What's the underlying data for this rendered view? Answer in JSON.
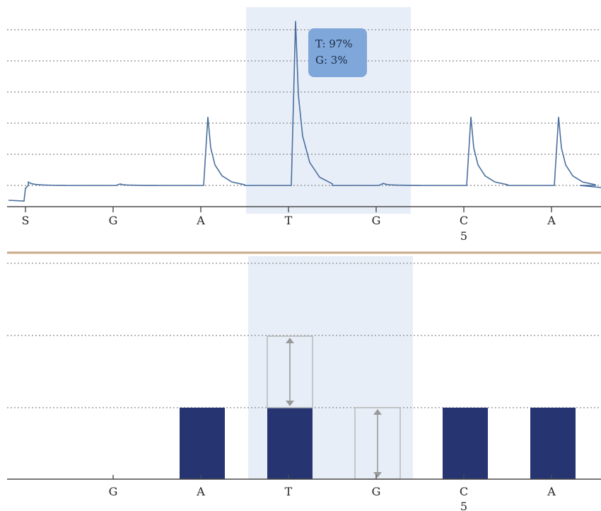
{
  "chart_data": [
    {
      "type": "line",
      "title": "",
      "description_type": "pyrogram",
      "x_categories": [
        "S",
        "G",
        "A",
        "T",
        "G",
        "C",
        "A"
      ],
      "position_labels": [
        {
          "category_index": 5,
          "label": "5"
        }
      ],
      "highlighted_category_index": 3,
      "peaks": [
        {
          "dispensation": "S",
          "height": 0.05
        },
        {
          "dispensation": "G",
          "height": 0.02
        },
        {
          "dispensation": "A",
          "height": 1.0
        },
        {
          "dispensation": "T",
          "height": 2.0
        },
        {
          "dispensation": "G",
          "height": 0.03
        },
        {
          "dispensation": "C",
          "height": 1.0
        },
        {
          "dispensation": "A",
          "height": 1.0
        }
      ],
      "gridlines": 6,
      "grid": true,
      "tooltip": {
        "lines": [
          "T: 97%",
          "G: 3%"
        ]
      }
    },
    {
      "type": "bar",
      "title": "",
      "description_type": "histogram",
      "categories": [
        "G",
        "A",
        "T",
        "G",
        "C",
        "A"
      ],
      "position_labels": [
        {
          "category_index": 4,
          "label": "5"
        }
      ],
      "highlighted_category_index": 2,
      "series": [
        {
          "values": [
            0,
            1,
            1,
            0,
            1,
            1
          ]
        }
      ],
      "expected_ranges": [
        {
          "category_index": 2,
          "low": 1,
          "high": 2
        },
        {
          "category_index": 3,
          "low": 0,
          "high": 1
        }
      ],
      "ylim": [
        0,
        2
      ],
      "grid": true
    }
  ],
  "colors": {
    "trace": "#4a6f9e",
    "bar": "#263571",
    "highlight": "#e8eef8",
    "tooltip": "#7fa7da",
    "divider": "#c9a98a"
  }
}
